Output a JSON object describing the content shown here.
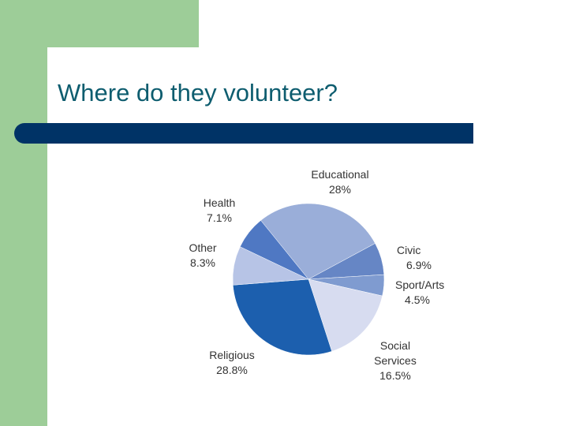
{
  "slide": {
    "title": "Where do they volunteer?"
  },
  "colors": {
    "background_green": "#9dcd98",
    "title_text": "#0e5d6f",
    "title_rule": "#003366"
  },
  "chart_data": {
    "type": "pie",
    "title": "",
    "slices": [
      {
        "label": "Educational",
        "value_label": "28%",
        "value": 28.0,
        "color": "#9aaed9"
      },
      {
        "label": "Civic",
        "value_label": "6.9%",
        "value": 6.9,
        "color": "#6686c5"
      },
      {
        "label": "Sport/Arts",
        "value_label": "4.5%",
        "value": 4.5,
        "color": "#7f9bd0"
      },
      {
        "label": "Social Services",
        "value_label": "16.5%",
        "value": 16.5,
        "color": "#d7dcf0"
      },
      {
        "label": "Religious",
        "value_label": "28.8%",
        "value": 28.8,
        "color": "#1c5fae"
      },
      {
        "label": "Other",
        "value_label": "8.3%",
        "value": 8.3,
        "color": "#b7c4e6"
      },
      {
        "label": "Health",
        "value_label": "7.1%",
        "value": 7.1,
        "color": "#4f78c3"
      }
    ],
    "label_lines": {
      "Educational": [
        "Educational",
        "28%"
      ],
      "Civic": [
        "Civic",
        "6.9%"
      ],
      "Sport/Arts": [
        "Sport/Arts",
        "4.5%"
      ],
      "Social Services": [
        "Social",
        "Services",
        "16.5%"
      ],
      "Religious": [
        "Religious",
        "28.8%"
      ],
      "Other": [
        "Other",
        "8.3%"
      ],
      "Health": [
        "Health",
        "7.1%"
      ]
    }
  }
}
